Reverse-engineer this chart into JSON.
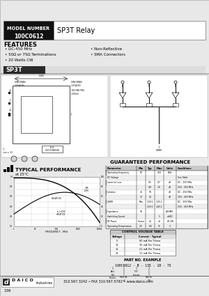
{
  "bg_color": "#f0f0f0",
  "model_number": "100C0612",
  "model_label": "MODEL NUMBER",
  "relay_type": "SP3T Relay",
  "features_title": "FEATURES",
  "features_left": [
    "DC-450 MHz",
    "50Ω or 75Ω Terminations",
    "20 Watts CW"
  ],
  "features_right": [
    "Non-Reflective",
    "SMA Connectors"
  ],
  "section_sp3t": "SP3T",
  "section_typical": "TYPICAL PERFORMANCE",
  "typical_subtitle": "at 25°C",
  "section_guaranteed": "GUARANTEED PERFORMANCE",
  "control_voltage_title": "CONTROL VOLTAGE TABLE",
  "control_headers": [
    "Voltage",
    "Current - Typical"
  ],
  "control_rows": [
    [
      "5",
      "80 mA Per Throw"
    ],
    [
      "12",
      "35 mA Per Throw"
    ],
    [
      "15",
      "21 mA Per Throw"
    ],
    [
      "28",
      "11 mA Per Throw"
    ]
  ],
  "part_no_title": "PART NO. EXAMPLE",
  "part_no_example": "100C0612 - B - 135 - 18 - 75",
  "footer_contact": "310.567.3242 • FAX 310.567.5761 • www.daico.com",
  "page_number": "136",
  "header_black_bg": "#111111",
  "section_bar_color": "#2a2a2a",
  "table_header_bg": "#c8c8c8",
  "guaranteed_rows": [
    [
      "Operating Frequency",
      "DC",
      "",
      "450",
      "MHz",
      ""
    ],
    [
      "DC Voltage",
      "",
      "",
      "",
      "",
      "See Table"
    ],
    [
      "Insertion Loss",
      "",
      "0.5",
      "0.7",
      "dB",
      "DC - 250 MHz"
    ],
    [
      "",
      "",
      "0.8",
      "1.0",
      "dB",
      "250 - 450 MHz"
    ],
    [
      "Isolation",
      "40",
      "50",
      "",
      "dB",
      "DC - 250 MHz"
    ],
    [
      "",
      "30",
      "40",
      "",
      "dB",
      "250 - 450 MHz"
    ],
    [
      "VSWR",
      "Max",
      "1.30:1",
      "1.25:1",
      "",
      "DC - 250 MHz"
    ],
    [
      "",
      "",
      "1.50:1",
      "1.45:1",
      "",
      "250 - 450 MHz"
    ],
    [
      "Impedance",
      "50",
      "",
      "",
      "ΩOHMS",
      ""
    ],
    [
      "Switching Speed",
      "",
      "",
      "5",
      "mSEC",
      ""
    ],
    [
      "RF Power",
      "Source",
      "20",
      "40",
      "W CW",
      ""
    ],
    [
      "Operating Temperature",
      "-25",
      "+25",
      "75",
      "°C",
      ""
    ]
  ]
}
